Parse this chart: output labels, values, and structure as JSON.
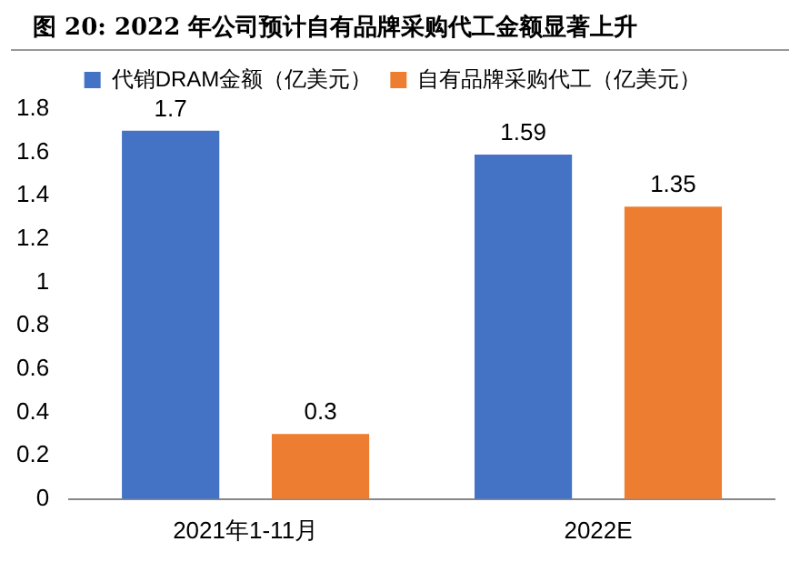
{
  "chart_data": {
    "type": "bar",
    "title": "图 20: 2022 年公司预计自有品牌采购代工金额显著上升",
    "categories": [
      "2021年1-11月",
      "2022E"
    ],
    "series": [
      {
        "name": "代销DRAM金额（亿美元）",
        "color": "#4472c4",
        "values": [
          1.7,
          1.59
        ]
      },
      {
        "name": "自有品牌采购代工（亿美元）",
        "color": "#ed7d31",
        "values": [
          0.3,
          1.35
        ]
      }
    ],
    "ylim": [
      0,
      1.8
    ],
    "yticks": [
      0,
      0.2,
      0.4,
      0.6,
      0.8,
      1,
      1.2,
      1.4,
      1.6,
      1.8
    ],
    "grid": false,
    "legend": "top",
    "data_labels": true
  }
}
